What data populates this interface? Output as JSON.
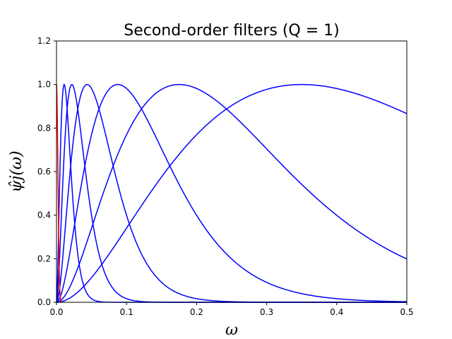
{
  "chart_data": {
    "type": "line",
    "title": "Second-order filters (Q = 1)",
    "xlabel": "ω",
    "ylabel": "ψ̂j(ω)",
    "xlim": [
      0.0,
      0.5
    ],
    "ylim": [
      0.0,
      1.2
    ],
    "xticks": [
      "0.0",
      "0.1",
      "0.2",
      "0.3",
      "0.4",
      "0.5"
    ],
    "yticks": [
      "0.0",
      "0.2",
      "0.4",
      "0.6",
      "0.8",
      "1.0",
      "1.2"
    ],
    "grid": false,
    "legend": "none",
    "series_color": "#0000ff",
    "lowpass_color": "#ff0000",
    "bandpass_filters": [
      {
        "peak_x": 0.35,
        "peak_y": 1.0
      },
      {
        "peak_x": 0.175,
        "peak_y": 1.0
      },
      {
        "peak_x": 0.0875,
        "peak_y": 1.0
      },
      {
        "peak_x": 0.04375,
        "peak_y": 1.0
      },
      {
        "peak_x": 0.021875,
        "peak_y": 1.0
      },
      {
        "peak_x": 0.0109375,
        "peak_y": 1.0
      }
    ],
    "lowpass_filter": {
      "value_at_zero": 1.0,
      "approx_zero_at": 0.005
    }
  }
}
